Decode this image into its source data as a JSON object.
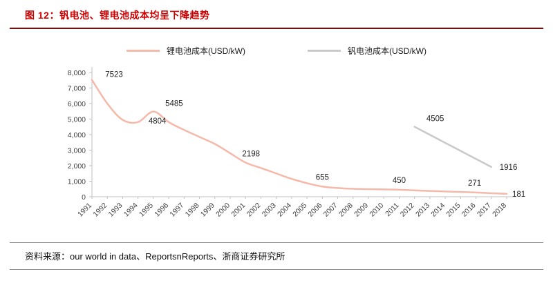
{
  "header": {
    "title": "图 12：钒电池、锂电池成本均呈下降趋势"
  },
  "footer": {
    "source": "资料来源：our world in data、ReportsnReports、浙商证券研究所"
  },
  "colors": {
    "title_red": "#cc0000",
    "header_rule": "#6e1111",
    "axis_gray": "#bfbfbf",
    "lithium_line": "#f5b8a9",
    "vanadium_line": "#c9c9c9"
  },
  "chart_data": {
    "type": "line",
    "title": "钒电池、锂电池成本均呈下降趋势",
    "xlabel": "",
    "ylabel": "",
    "ylim": [
      0,
      8000
    ],
    "grid": false,
    "legend_position": "top",
    "y_ticks": [
      0,
      1000,
      2000,
      3000,
      4000,
      5000,
      6000,
      7000,
      8000
    ],
    "y_tick_labels": [
      "0",
      "1,000",
      "2,000",
      "3,000",
      "4,000",
      "5,000",
      "6,000",
      "7,000",
      "8,000"
    ],
    "categories": [
      "1991",
      "1992",
      "1993",
      "1994",
      "1995",
      "1996",
      "1997",
      "1998",
      "1999",
      "2000",
      "2001",
      "2002",
      "2003",
      "2004",
      "2005",
      "2006",
      "2007",
      "2008",
      "2009",
      "2010",
      "2011",
      "2012",
      "2013",
      "2014",
      "2015",
      "2016",
      "2017",
      "2018"
    ],
    "series": [
      {
        "name": "锂电池成本(USD/kW)",
        "color": "#f5b8a9",
        "smooth": true,
        "values": [
          7523,
          6000,
          4950,
          4804,
          5485,
          4800,
          4300,
          3850,
          3400,
          2800,
          2198,
          1850,
          1500,
          1150,
          870,
          655,
          560,
          510,
          490,
          470,
          450,
          410,
          370,
          340,
          305,
          271,
          225,
          181
        ],
        "point_labels": [
          {
            "category": "1991",
            "text": "7523",
            "dx": 32,
            "dy": -4
          },
          {
            "category": "1994",
            "text": "4804",
            "dx": 28,
            "dy": 2
          },
          {
            "category": "1995",
            "text": "5485",
            "dx": 30,
            "dy": -8
          },
          {
            "category": "2001",
            "text": "2198",
            "dx": 8,
            "dy": -9
          },
          {
            "category": "2006",
            "text": "655",
            "dx": 0,
            "dy": -10
          },
          {
            "category": "2011",
            "text": "450",
            "dx": 0,
            "dy": -10
          },
          {
            "category": "2016",
            "text": "271",
            "dx": -2,
            "dy": -10
          },
          {
            "category": "2018",
            "text": "181",
            "dx": 8,
            "dy": 4,
            "anchor": "start"
          }
        ]
      },
      {
        "name": "钒电池成本(USD/kW)",
        "color": "#c9c9c9",
        "smooth": false,
        "values": [
          null,
          null,
          null,
          null,
          null,
          null,
          null,
          null,
          null,
          null,
          null,
          null,
          null,
          null,
          null,
          null,
          null,
          null,
          null,
          null,
          null,
          4505,
          null,
          null,
          null,
          null,
          1916,
          null
        ],
        "point_labels": [
          {
            "category": "2012",
            "text": "4505",
            "dx": 30,
            "dy": -8
          },
          {
            "category": "2017",
            "text": "1916",
            "dx": 12,
            "dy": 4,
            "anchor": "start"
          }
        ]
      }
    ]
  }
}
